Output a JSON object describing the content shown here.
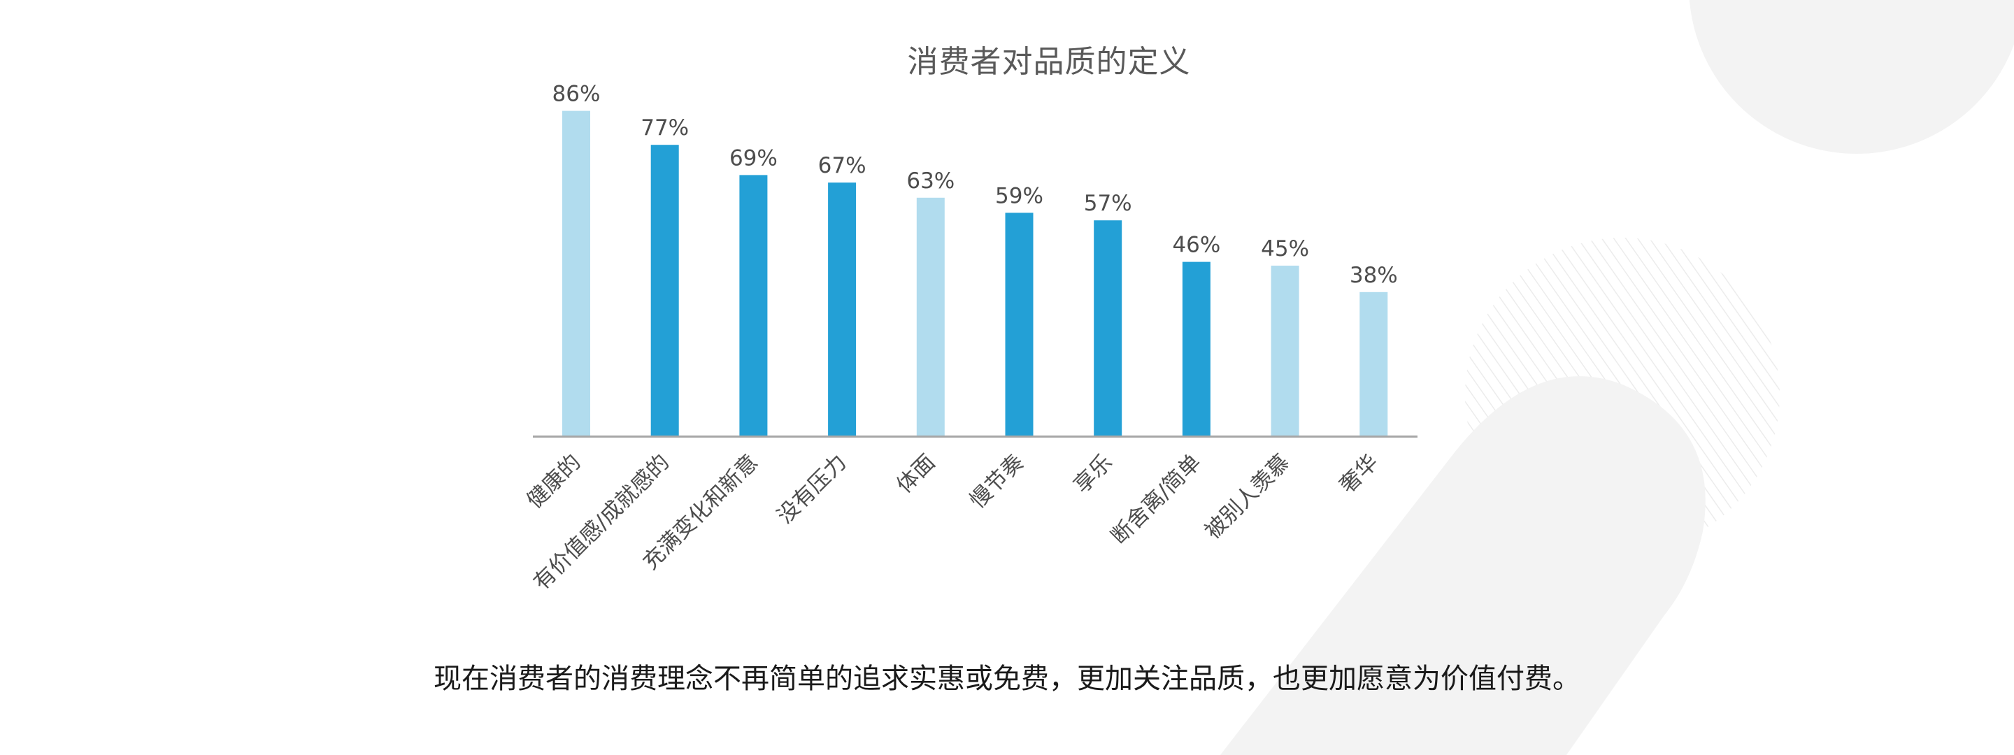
{
  "chart_data": {
    "type": "bar",
    "title": "消费者对品质的定义",
    "xlabel": "",
    "ylabel": "",
    "ylim": [
      0,
      100
    ],
    "grid": false,
    "categories": [
      "健康的",
      "有价值感/成就感的",
      "充满变化和新意",
      "没有压力",
      "体面",
      "慢节奏",
      "享乐",
      "断舍离/简单",
      "被别人羡慕",
      "奢华"
    ],
    "values": [
      86,
      77,
      69,
      67,
      63,
      59,
      57,
      46,
      45,
      38
    ],
    "value_labels": [
      "86%",
      "77%",
      "69%",
      "67%",
      "63%",
      "59%",
      "57%",
      "46%",
      "45%",
      "38%"
    ],
    "bar_colors": [
      "#b1dcee",
      "#23a0d6",
      "#23a0d6",
      "#23a0d6",
      "#b1dcee",
      "#23a0d6",
      "#23a0d6",
      "#23a0d6",
      "#b1dcee",
      "#b1dcee"
    ],
    "axis_color": "#a6a6a6"
  },
  "caption": "现在消费者的消费理念不再简单的追求实惠或免费，更加关注品质，也更加愿意为价值付费。",
  "decor_color": "#f3f3f3"
}
